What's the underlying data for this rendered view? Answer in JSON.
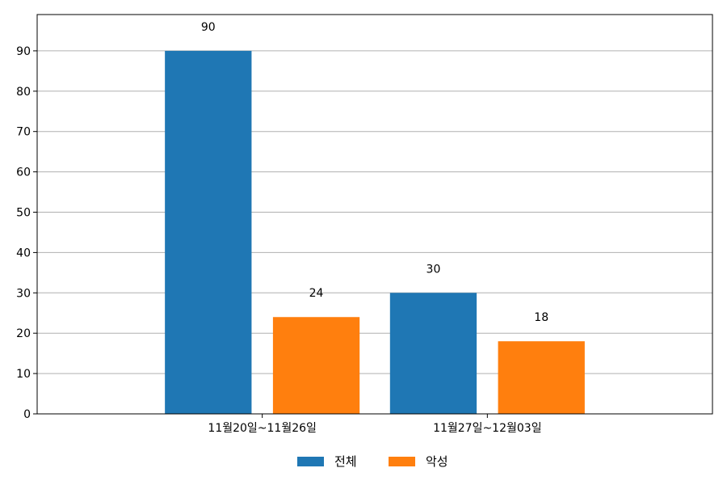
{
  "chart_data": {
    "type": "bar",
    "categories": [
      "11월20일~11월26일",
      "11월27일~12월03일"
    ],
    "series": [
      {
        "name": "전체",
        "values": [
          90,
          30
        ],
        "color": "#1f77b4"
      },
      {
        "name": "악성",
        "values": [
          24,
          18
        ],
        "color": "#ff7f0e"
      }
    ],
    "ylim": [
      0,
      99
    ],
    "yticks": [
      0,
      10,
      20,
      30,
      40,
      50,
      60,
      70,
      80,
      90
    ],
    "grid": true,
    "legend": "bottom-center",
    "data_labels": true
  }
}
